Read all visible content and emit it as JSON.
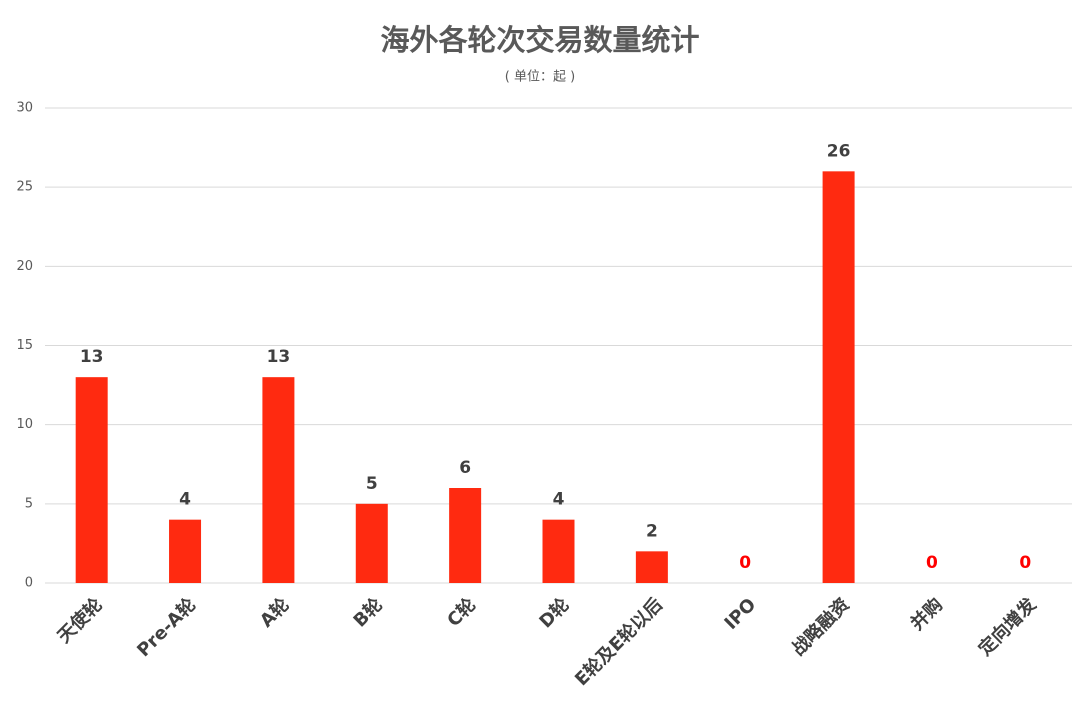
{
  "chart_data": {
    "type": "bar",
    "title": "海外各轮次交易数量统计",
    "subtitle": "( 单位：起 )",
    "categories": [
      "天使轮",
      "Pre-A轮",
      "A轮",
      "B轮",
      "C轮",
      "D轮",
      "E轮及E轮以后",
      "IPO",
      "战略融资",
      "并购",
      "定向增发"
    ],
    "values": [
      13,
      4,
      13,
      5,
      6,
      4,
      2,
      0,
      26,
      0,
      0
    ],
    "color": "#ff2a10",
    "label_color": "#404040",
    "zero_label_color": "#ff0000",
    "ylim": [
      0,
      30
    ],
    "yticks": [
      0,
      5,
      10,
      15,
      20,
      25,
      30
    ],
    "grid": true
  }
}
